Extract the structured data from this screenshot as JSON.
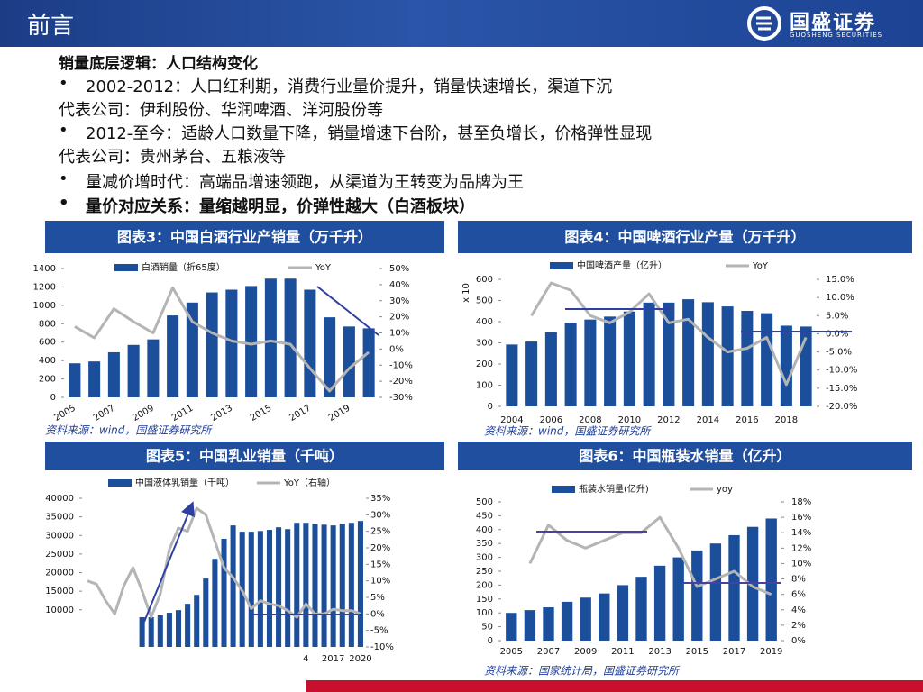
{
  "header": {
    "title": "前言",
    "logo": "国盛证券",
    "logo_sub": "GUOSHENG SECURITIES"
  },
  "lines": [
    "销量底层逻辑：人口结构变化",
    "2002-2012：人口红利期，消费行业量价提升，销量快速增长，渠道下沉",
    "代表公司：伊利股份、华润啤酒、洋河股份等",
    "2012-至今：适龄人口数量下降，销量增速下台阶，甚至负增长，价格弹性显现",
    "代表公司：贵州茅台、五粮液等",
    "量减价增时代：高端品增速领跑，从渠道为王转变为品牌为王",
    "量价对应关系：量缩越明显，价弹性越大（白酒板块）"
  ],
  "chart_data": [
    {
      "type": "combo",
      "title": "图表3：中国白酒行业产销量（万千升）",
      "source": "资料来源：wind，国盛证券研究所",
      "categories": [
        "2005",
        null,
        "2007",
        null,
        "2009",
        null,
        "2011",
        null,
        "2013",
        null,
        "2015",
        null,
        "2017",
        null,
        "2019",
        null
      ],
      "series": [
        {
          "name": "白酒销量（折65度）",
          "type": "bar",
          "color": "#1b4f9c",
          "values": [
            370,
            390,
            490,
            570,
            630,
            890,
            1030,
            1140,
            1170,
            1210,
            1290,
            1290,
            1170,
            870,
            770,
            750
          ]
        },
        {
          "name": "YoY",
          "type": "line",
          "axis": "y2",
          "color": "#b4b4b4",
          "values": [
            14,
            7,
            25,
            17,
            10,
            38,
            17,
            10,
            5,
            3,
            5,
            3,
            -12,
            -26,
            -12,
            -2
          ]
        }
      ],
      "ylim": [
        0,
        1400
      ],
      "yticks": [
        0,
        200,
        400,
        600,
        800,
        1000,
        1200,
        1400
      ],
      "y2lim": [
        -30,
        50
      ],
      "y2ticks": [
        {
          "value": -30,
          "label": "-30%"
        },
        {
          "value": -20,
          "label": "-20%"
        },
        {
          "value": -10,
          "label": "-10%"
        },
        {
          "value": 0,
          "label": "0%"
        },
        {
          "value": 10,
          "label": "10%"
        },
        {
          "value": 20,
          "label": "20%"
        },
        {
          "value": 30,
          "label": "30%"
        },
        {
          "value": 40,
          "label": "40%"
        },
        {
          "value": 50,
          "label": "50%"
        }
      ]
    },
    {
      "type": "combo",
      "title": "图表4：中国啤酒行业产量（万千升）",
      "source": "资料来源：wind，国盛证券研究所",
      "y_label": "x 10",
      "categories": [
        "2004",
        null,
        "2006",
        null,
        "2008",
        null,
        "2010",
        null,
        "2012",
        null,
        "2014",
        null,
        "2016",
        null,
        "2018",
        null
      ],
      "series": [
        {
          "name": "中国啤酒产量（亿升）",
          "type": "bar",
          "color": "#1b4f9c",
          "values": [
            292,
            306,
            351,
            395,
            410,
            424,
            448,
            490,
            490,
            506,
            492,
            472,
            451,
            440,
            381,
            377
          ]
        },
        {
          "name": "YoY",
          "type": "line",
          "axis": "y2",
          "color": "#b4b4b4",
          "values": [
            null,
            5,
            14,
            12,
            5,
            3,
            6,
            11,
            3,
            4,
            -1,
            -5,
            -4,
            -1,
            -14,
            -1
          ]
        }
      ],
      "ylim": [
        0,
        600
      ],
      "yticks": [
        0,
        100,
        200,
        300,
        400,
        500,
        600
      ],
      "y2lim": [
        -20,
        15
      ],
      "y2ticks": [
        {
          "value": -20,
          "label": "-20.0%"
        },
        {
          "value": -15,
          "label": "-15.0%"
        },
        {
          "value": -10,
          "label": "-10.0%"
        },
        {
          "value": -5,
          "label": "-5.0%"
        },
        {
          "value": 0,
          "label": "0.0%"
        },
        {
          "value": 5,
          "label": "5.0%"
        },
        {
          "value": 10,
          "label": "10.0%"
        },
        {
          "value": 15,
          "label": "15.0%"
        }
      ]
    },
    {
      "type": "combo",
      "title": "图表5：中国乳业销量（千吨）",
      "categories": [
        null,
        null,
        null,
        null,
        null,
        null,
        null,
        null,
        null,
        null,
        null,
        null,
        null,
        null,
        null,
        null,
        null,
        null,
        null,
        null,
        null,
        null,
        null,
        null,
        "4",
        null,
        null,
        "2017",
        null,
        null,
        "2020"
      ],
      "series": [
        {
          "name": "中国液体乳销量（千吨）",
          "type": "bar",
          "color": "#1b4f9c",
          "values": [
            null,
            null,
            null,
            null,
            null,
            null,
            8000,
            8000,
            8500,
            9200,
            9900,
            11600,
            14000,
            18400,
            23700,
            29100,
            32700,
            31000,
            31000,
            31200,
            31500,
            32200,
            31700,
            33400,
            33400,
            33200,
            32900,
            32700,
            33200,
            33400,
            33900
          ]
        },
        {
          "name": "YoY（右轴）",
          "type": "line",
          "axis": "y2",
          "color": "#b4b4b4",
          "values": [
            10,
            9,
            4,
            0,
            8.5,
            14,
            7,
            -1,
            6,
            19.5,
            26,
            25,
            32,
            30,
            22,
            14,
            11,
            7,
            1.6,
            4,
            3,
            2.5,
            1,
            -1,
            3,
            0,
            0,
            1.4,
            1,
            1,
            0
          ]
        }
      ],
      "ylim": [
        0,
        40000
      ],
      "yticks": [
        10000,
        15000,
        20000,
        25000,
        30000,
        35000,
        40000
      ],
      "y2lim": [
        -10,
        35
      ],
      "y2ticks": [
        {
          "value": -10,
          "label": "-10%"
        },
        {
          "value": -5,
          "label": "-5%"
        },
        {
          "value": 0,
          "label": "0%"
        },
        {
          "value": 5,
          "label": "5%"
        },
        {
          "value": 10,
          "label": "10%"
        },
        {
          "value": 15,
          "label": "15%"
        },
        {
          "value": 20,
          "label": "20%"
        },
        {
          "value": 25,
          "label": "25%"
        },
        {
          "value": 30,
          "label": "30%"
        },
        {
          "value": 35,
          "label": "35%"
        }
      ]
    },
    {
      "type": "combo",
      "title": "图表6：中国瓶装水销量（亿升）",
      "source": "资料来源：国家统计局，国盛证券研究所",
      "categories": [
        "2005",
        null,
        "2007",
        null,
        "2009",
        null,
        "2011",
        null,
        "2013",
        null,
        "2015",
        null,
        "2017",
        null,
        "2019"
      ],
      "series": [
        {
          "name": "瓶装水销量(亿升)",
          "type": "bar",
          "color": "#1b4f9c",
          "values": [
            100,
            110,
            120,
            140,
            155,
            170,
            200,
            230,
            270,
            300,
            325,
            350,
            380,
            410,
            440
          ]
        },
        {
          "name": "yoy",
          "type": "line",
          "axis": "y2",
          "color": "#b4b4b4",
          "values": [
            null,
            10,
            15,
            13,
            12,
            13,
            14,
            14,
            16,
            12,
            7,
            8,
            9,
            7,
            6
          ]
        }
      ],
      "ylim": [
        0,
        500
      ],
      "yticks": [
        0,
        50,
        100,
        150,
        200,
        250,
        300,
        350,
        400,
        450,
        500
      ],
      "y2lim": [
        0,
        18
      ],
      "y2ticks": [
        {
          "value": 0,
          "label": "0%"
        },
        {
          "value": 2,
          "label": "2%"
        },
        {
          "value": 4,
          "label": "4%"
        },
        {
          "value": 6,
          "label": "6%"
        },
        {
          "value": 8,
          "label": "8%"
        },
        {
          "value": 10,
          "label": "10%"
        },
        {
          "value": 12,
          "label": "12%"
        },
        {
          "value": 14,
          "label": "14%"
        },
        {
          "value": 16,
          "label": "16%"
        },
        {
          "value": 18,
          "label": "18%"
        }
      ]
    }
  ]
}
